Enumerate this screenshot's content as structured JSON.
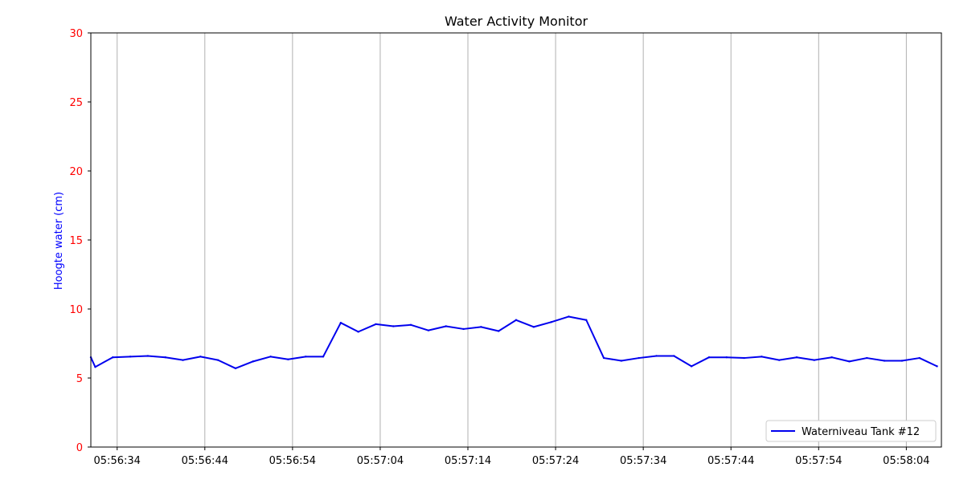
{
  "chart_data": {
    "type": "line",
    "title": "Water Activity Monitor",
    "xlabel": "",
    "ylabel": "Hoogte water (cm)",
    "ylim": [
      0,
      30
    ],
    "yticks": [
      0,
      5,
      10,
      15,
      20,
      25,
      30
    ],
    "xlim": [
      "05:56:31",
      "05:58:08"
    ],
    "xticks": [
      "05:56:34",
      "05:56:44",
      "05:56:54",
      "05:57:04",
      "05:57:14",
      "05:57:24",
      "05:57:34",
      "05:57:44",
      "05:57:54",
      "05:58:04"
    ],
    "grid": "vertical",
    "legend_position": "bottom-right",
    "colors": {
      "series": "#0000ee",
      "ytick_text": "#ff0000",
      "ylabel_text": "#0000ff",
      "grid": "#b0b0b0"
    },
    "series": [
      {
        "name": "Waterniveau Tank #12",
        "x": [
          "05:56:31",
          "05:56:31.5",
          "05:56:33.5",
          "05:56:35.5",
          "05:56:37.5",
          "05:56:39.5",
          "05:56:41.5",
          "05:56:43.5",
          "05:56:45.5",
          "05:56:47.5",
          "05:56:49.5",
          "05:56:51.5",
          "05:56:53.5",
          "05:56:55.5",
          "05:56:57.5",
          "05:56:59.5",
          "05:57:01.5",
          "05:57:03.5",
          "05:57:05.5",
          "05:57:07.5",
          "05:57:09.5",
          "05:57:11.5",
          "05:57:13.5",
          "05:57:15.5",
          "05:57:17.5",
          "05:57:19.5",
          "05:57:21.5",
          "05:57:23.5",
          "05:57:25.5",
          "05:57:27.5",
          "05:57:29.5",
          "05:57:31.5",
          "05:57:33.5",
          "05:57:35.5",
          "05:57:37.5",
          "05:57:39.5",
          "05:57:41.5",
          "05:57:43.5",
          "05:57:45.5",
          "05:57:47.5",
          "05:57:49.5",
          "05:57:51.5",
          "05:57:53.5",
          "05:57:55.5",
          "05:57:57.5",
          "05:57:59.5",
          "05:58:01.5",
          "05:58:03.5",
          "05:58:05.5",
          "05:58:07.5"
        ],
        "values": [
          6.5,
          5.8,
          6.5,
          6.55,
          6.6,
          6.5,
          6.3,
          6.55,
          6.3,
          5.7,
          6.2,
          6.55,
          6.35,
          6.55,
          6.55,
          9.0,
          8.35,
          8.9,
          8.75,
          8.85,
          8.45,
          8.75,
          8.55,
          8.7,
          8.4,
          9.2,
          8.7,
          9.05,
          9.45,
          9.2,
          6.45,
          6.25,
          6.45,
          6.6,
          6.6,
          5.85,
          6.5,
          6.5,
          6.45,
          6.55,
          6.3,
          6.5,
          6.3,
          6.5,
          6.2,
          6.45,
          6.25,
          6.25,
          6.45,
          5.85
        ]
      }
    ]
  }
}
